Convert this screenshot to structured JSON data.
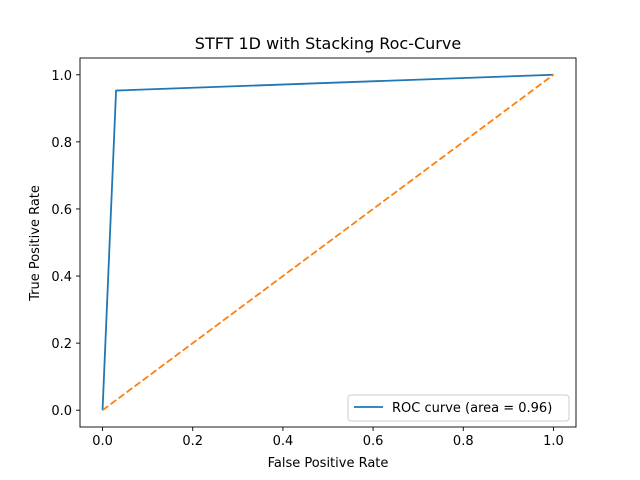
{
  "chart_data": {
    "type": "line",
    "title": "STFT 1D with Stacking Roc-Curve",
    "xlabel": "False Positive Rate",
    "ylabel": "True Positive Rate",
    "xlim": [
      -0.05,
      1.05
    ],
    "ylim": [
      -0.05,
      1.05
    ],
    "xticks": [
      "0.0",
      "0.2",
      "0.4",
      "0.6",
      "0.8",
      "1.0"
    ],
    "yticks": [
      "0.0",
      "0.2",
      "0.4",
      "0.6",
      "0.8",
      "1.0"
    ],
    "grid": false,
    "legend_position": "lower right",
    "series": [
      {
        "name": "ROC curve (area = 0.96)",
        "style": "solid",
        "color": "#1f77b4",
        "x": [
          0.0,
          0.03,
          1.0
        ],
        "y": [
          0.0,
          0.953,
          1.0
        ]
      },
      {
        "style": "dashed",
        "color": "#ff7f0e",
        "x": [
          0.0,
          1.0
        ],
        "y": [
          0.0,
          1.0
        ]
      }
    ]
  }
}
